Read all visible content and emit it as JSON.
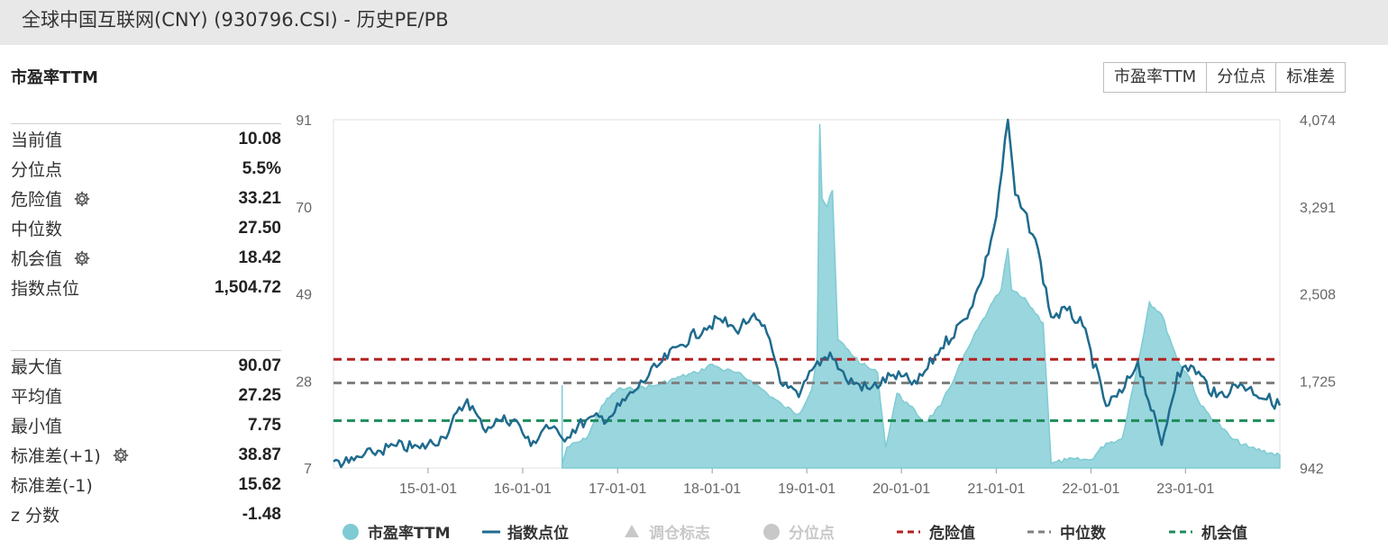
{
  "header": {
    "title": "全球中国互联网(CNY) (930796.CSI) - 历史PE/PB"
  },
  "section_title": "市盈率TTM",
  "buttons": [
    "市盈率TTM",
    "分位点",
    "标准差"
  ],
  "stats_top": [
    {
      "label": "当前值",
      "value": "10.08",
      "gear": false
    },
    {
      "label": "分位点",
      "value": "5.5%",
      "gear": false
    },
    {
      "label": "危险值",
      "value": "33.21",
      "gear": true
    },
    {
      "label": "中位数",
      "value": "27.50",
      "gear": false
    },
    {
      "label": "机会值",
      "value": "18.42",
      "gear": true
    },
    {
      "label": "指数点位",
      "value": "1,504.72",
      "gear": false
    }
  ],
  "stats_bottom": [
    {
      "label": "最大值",
      "value": "90.07",
      "gear": false
    },
    {
      "label": "平均值",
      "value": "27.25",
      "gear": false
    },
    {
      "label": "最小值",
      "value": "7.75",
      "gear": false
    },
    {
      "label": "标准差(+1)",
      "value": "38.87",
      "gear": true
    },
    {
      "label": "标准差(-1)",
      "value": "15.62",
      "gear": false
    },
    {
      "label": "z 分数",
      "value": "-1.48",
      "gear": false
    }
  ],
  "colors": {
    "pe_fill": "#9ad6dd",
    "pe_line": "#7fcbd4",
    "index_line": "#1f6b8e",
    "danger": "#b22222",
    "median": "#808080",
    "opportunity": "#1e8c5a",
    "disabled": "#c8c8c8"
  },
  "chart_data": {
    "type": "area",
    "x_ticks": [
      "15-01-01",
      "16-01-01",
      "17-01-01",
      "18-01-01",
      "19-01-01",
      "20-01-01",
      "21-01-01",
      "22-01-01",
      "23-01-01"
    ],
    "y_left": {
      "ticks": [
        "91",
        "70",
        "49",
        "28",
        "7"
      ],
      "range": [
        7,
        91
      ]
    },
    "y_right": {
      "ticks": [
        "4,074",
        "3,291",
        "2,508",
        "1,725",
        "942"
      ],
      "range": [
        942,
        4074
      ]
    },
    "x_range": [
      "2014-01-01",
      "2023-12-31"
    ],
    "reference_lines": {
      "danger": 33.21,
      "median": 27.5,
      "opportunity": 18.42
    },
    "series": [
      {
        "name": "市盈率TTM",
        "axis": "left",
        "points": [
          [
            "2016-06-01",
            27
          ],
          [
            "2016-06-02",
            8
          ],
          [
            "2016-06-20",
            12
          ],
          [
            "2016-09-01",
            14
          ],
          [
            "2016-11-01",
            22
          ],
          [
            "2017-01-01",
            26
          ],
          [
            "2017-03-01",
            26
          ],
          [
            "2017-06-01",
            27
          ],
          [
            "2017-09-01",
            29
          ],
          [
            "2017-11-01",
            30
          ],
          [
            "2018-01-01",
            32
          ],
          [
            "2018-02-01",
            31
          ],
          [
            "2018-04-01",
            30
          ],
          [
            "2018-06-01",
            28
          ],
          [
            "2018-08-01",
            25
          ],
          [
            "2018-10-01",
            22
          ],
          [
            "2018-12-01",
            20
          ],
          [
            "2019-01-20",
            26
          ],
          [
            "2019-02-10",
            34
          ],
          [
            "2019-02-20",
            90
          ],
          [
            "2019-03-01",
            72
          ],
          [
            "2019-03-20",
            70
          ],
          [
            "2019-04-10",
            74
          ],
          [
            "2019-05-01",
            38
          ],
          [
            "2019-06-01",
            36
          ],
          [
            "2019-08-01",
            32
          ],
          [
            "2019-10-01",
            30
          ],
          [
            "2019-11-01",
            12
          ],
          [
            "2019-12-15",
            25
          ],
          [
            "2020-02-01",
            22
          ],
          [
            "2020-04-01",
            18
          ],
          [
            "2020-06-01",
            22
          ],
          [
            "2020-08-01",
            30
          ],
          [
            "2020-10-01",
            38
          ],
          [
            "2020-12-01",
            45
          ],
          [
            "2021-01-20",
            50
          ],
          [
            "2021-02-15",
            60
          ],
          [
            "2021-03-01",
            50
          ],
          [
            "2021-05-01",
            47
          ],
          [
            "2021-07-01",
            42
          ],
          [
            "2021-08-01",
            8
          ],
          [
            "2021-10-01",
            9
          ],
          [
            "2022-01-01",
            9
          ],
          [
            "2022-03-01",
            13
          ],
          [
            "2022-05-01",
            14
          ],
          [
            "2022-07-01",
            32
          ],
          [
            "2022-08-15",
            47
          ],
          [
            "2022-10-01",
            44
          ],
          [
            "2022-12-01",
            33
          ],
          [
            "2023-01-15",
            29
          ],
          [
            "2023-03-01",
            22
          ],
          [
            "2023-05-01",
            18
          ],
          [
            "2023-07-01",
            14
          ],
          [
            "2023-09-01",
            12
          ],
          [
            "2023-12-31",
            10.08
          ]
        ]
      },
      {
        "name": "指数点位",
        "axis": "right",
        "points": [
          [
            "2014-01-01",
            1000
          ],
          [
            "2014-03-01",
            990
          ],
          [
            "2014-06-01",
            1080
          ],
          [
            "2014-09-01",
            1140
          ],
          [
            "2014-12-01",
            1120
          ],
          [
            "2015-03-01",
            1220
          ],
          [
            "2015-06-01",
            1560
          ],
          [
            "2015-08-01",
            1300
          ],
          [
            "2015-10-01",
            1370
          ],
          [
            "2015-12-01",
            1380
          ],
          [
            "2016-02-01",
            1140
          ],
          [
            "2016-04-01",
            1330
          ],
          [
            "2016-06-01",
            1210
          ],
          [
            "2016-09-01",
            1370
          ],
          [
            "2016-12-01",
            1400
          ],
          [
            "2017-03-01",
            1620
          ],
          [
            "2017-06-01",
            1850
          ],
          [
            "2017-09-01",
            2050
          ],
          [
            "2017-12-01",
            2200
          ],
          [
            "2018-02-01",
            2280
          ],
          [
            "2018-04-01",
            2180
          ],
          [
            "2018-06-01",
            2300
          ],
          [
            "2018-08-01",
            2150
          ],
          [
            "2018-10-01",
            1680
          ],
          [
            "2018-12-01",
            1580
          ],
          [
            "2019-02-01",
            1860
          ],
          [
            "2019-04-01",
            1980
          ],
          [
            "2019-06-01",
            1740
          ],
          [
            "2019-09-01",
            1650
          ],
          [
            "2019-12-01",
            1780
          ],
          [
            "2020-03-01",
            1700
          ],
          [
            "2020-06-01",
            2020
          ],
          [
            "2020-09-01",
            2280
          ],
          [
            "2020-11-01",
            2600
          ],
          [
            "2021-01-01",
            3200
          ],
          [
            "2021-02-15",
            4074
          ],
          [
            "2021-03-15",
            3400
          ],
          [
            "2021-06-01",
            3000
          ],
          [
            "2021-08-01",
            2300
          ],
          [
            "2021-10-01",
            2360
          ],
          [
            "2021-12-01",
            2220
          ],
          [
            "2022-03-01",
            1500
          ],
          [
            "2022-05-01",
            1620
          ],
          [
            "2022-07-01",
            1900
          ],
          [
            "2022-10-01",
            1150
          ],
          [
            "2022-12-01",
            1800
          ],
          [
            "2023-02-01",
            1850
          ],
          [
            "2023-05-01",
            1580
          ],
          [
            "2023-08-01",
            1700
          ],
          [
            "2023-12-31",
            1504.72
          ]
        ]
      }
    ],
    "legend": [
      {
        "label": "市盈率TTM",
        "symbol": "circle",
        "color": "#7fcbd4",
        "enabled": true
      },
      {
        "label": "指数点位",
        "symbol": "line",
        "color": "#1f6b8e",
        "enabled": true
      },
      {
        "label": "调仓标志",
        "symbol": "triangle",
        "color": "#c8c8c8",
        "enabled": false
      },
      {
        "label": "分位点",
        "symbol": "circle",
        "color": "#c8c8c8",
        "enabled": false
      },
      {
        "label": "危险值",
        "symbol": "dash",
        "color": "#b22222",
        "enabled": true
      },
      {
        "label": "中位数",
        "symbol": "dash",
        "color": "#808080",
        "enabled": true
      },
      {
        "label": "机会值",
        "symbol": "dash",
        "color": "#1e8c5a",
        "enabled": true
      }
    ]
  }
}
